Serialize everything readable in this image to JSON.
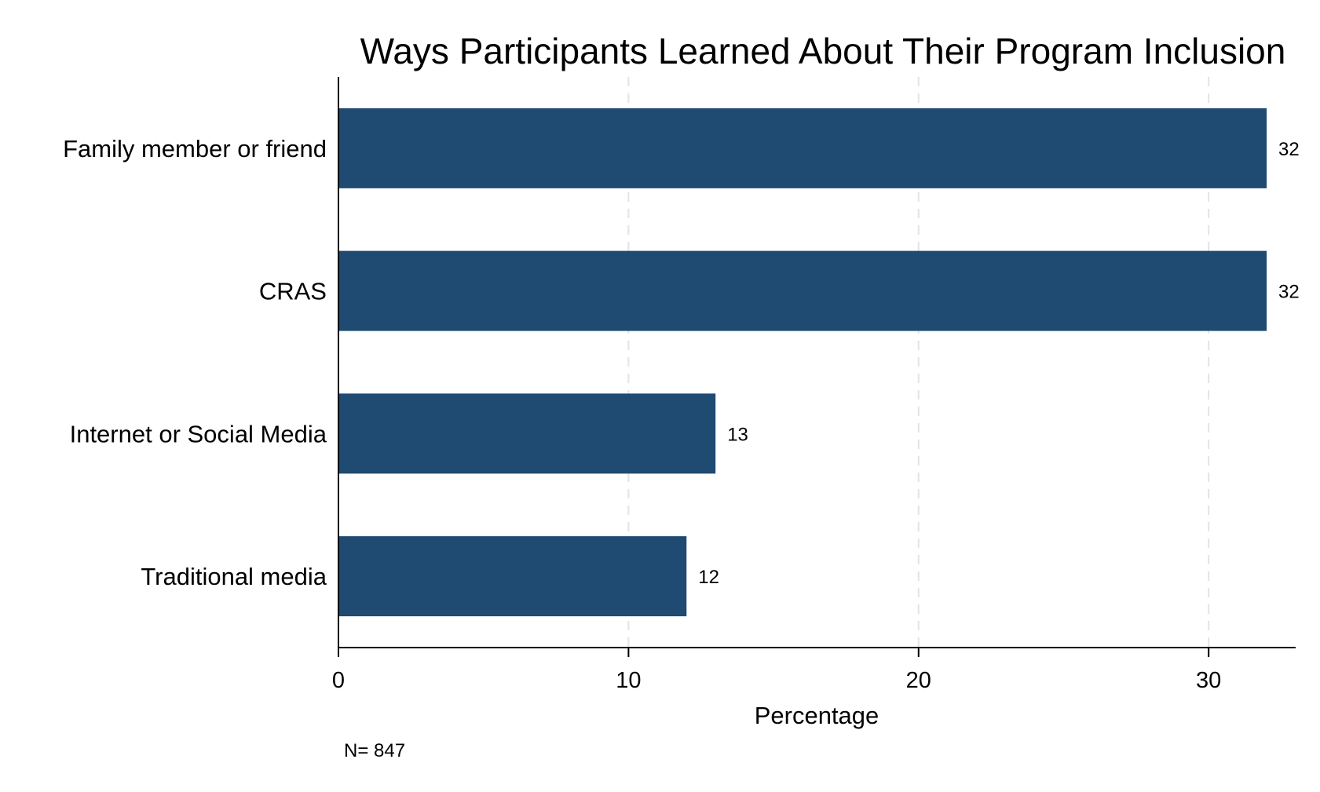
{
  "chart_data": {
    "type": "bar",
    "orientation": "horizontal",
    "title": "Ways Participants Learned About Their Program Inclusion",
    "categories": [
      "Family member or friend",
      "CRAS",
      "Internet or Social Media",
      "Traditional media"
    ],
    "values": [
      32,
      32,
      13,
      12
    ],
    "data_labels": [
      "32",
      "32",
      "13",
      "12"
    ],
    "xlabel": "Percentage",
    "ylabel": "",
    "xlim": [
      0,
      33
    ],
    "xticks": [
      0,
      10,
      20,
      30
    ],
    "xtick_labels": [
      "0",
      "10",
      "20",
      "30"
    ],
    "grid": "vertical dashed",
    "bar_color": "#1f4a72",
    "note": "N= 847"
  }
}
